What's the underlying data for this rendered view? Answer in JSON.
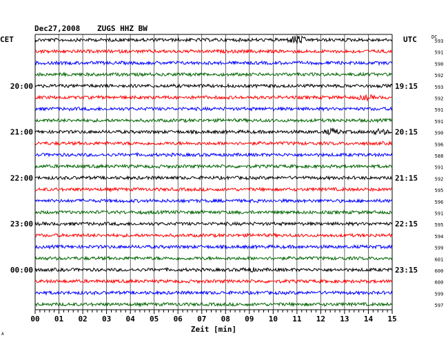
{
  "header": {
    "date": "Dec27,2008",
    "station": "ZUGS HHZ BW",
    "left_tz": "CET",
    "right_tz": "UTC",
    "dc_label": "DC"
  },
  "chart_data": {
    "type": "line",
    "title": "Dec27,2008  ZUGS HHZ BW",
    "xlabel": "Zeit [min]",
    "xlim": [
      0,
      15
    ],
    "x_ticks": [
      "00",
      "01",
      "02",
      "03",
      "04",
      "05",
      "06",
      "07",
      "08",
      "09",
      "10",
      "11",
      "12",
      "13",
      "14",
      "15"
    ],
    "grid": true,
    "row_colors": [
      "#000000",
      "#ff0000",
      "#0000ff",
      "#006400"
    ],
    "left_time_labels": [
      "20:00",
      "21:00",
      "22:00",
      "23:00",
      "00:00"
    ],
    "right_time_labels": [
      "19:15",
      "20:15",
      "21:15",
      "22:15",
      "23:15"
    ],
    "time_label_every_n_rows": 4,
    "time_label_first_row": 4,
    "dc_offsets": [
      593,
      591,
      590,
      592,
      593,
      592,
      591,
      591,
      590,
      596,
      588,
      591,
      592,
      595,
      596,
      591,
      595,
      594,
      599,
      601,
      600,
      600,
      599,
      597
    ],
    "events": [
      {
        "row": 0,
        "minute": 11.0,
        "strength": 1.0
      },
      {
        "row": 5,
        "minute": 13.9,
        "strength": 0.4
      },
      {
        "row": 8,
        "minute": 12.5,
        "strength": 0.6
      },
      {
        "row": 8,
        "minute": 14.5,
        "strength": 0.5
      },
      {
        "row": 20,
        "minute": 9.0,
        "strength": 0.3
      }
    ]
  },
  "footer": {
    "corner_mark": "A"
  }
}
